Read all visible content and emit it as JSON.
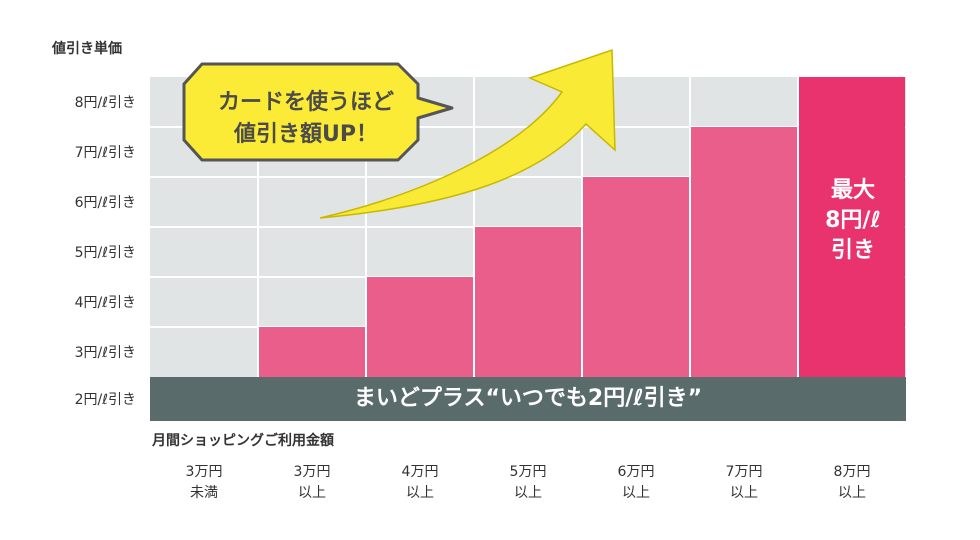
{
  "colors": {
    "grid_background": "#e0e4e5",
    "grid_lines": "#ffffff",
    "bar": "#e95e8a",
    "bar_max": "#e8336e",
    "base_banner": "#5a6b6c",
    "arrow": "#f9ea36",
    "bubble": "#fbeb36"
  },
  "chart_data": {
    "type": "bar",
    "ylabel": "値引き単価",
    "xlabel": "月間ショッピングご利用金額",
    "y_ticks": [
      "2円/ℓ引き",
      "3円/ℓ引き",
      "4円/ℓ引き",
      "5円/ℓ引き",
      "6円/ℓ引き",
      "7円/ℓ引き",
      "8円/ℓ引き"
    ],
    "ylim": [
      2,
      8
    ],
    "categories": [
      [
        "3万円",
        "未満"
      ],
      [
        "3万円",
        "以上"
      ],
      [
        "4万円",
        "以上"
      ],
      [
        "5万円",
        "以上"
      ],
      [
        "6万円",
        "以上"
      ],
      [
        "7万円",
        "以上"
      ],
      [
        "8万円",
        "以上"
      ]
    ],
    "values": [
      2,
      3,
      4,
      5,
      6,
      7,
      8
    ],
    "grid": true,
    "base_banner": "まいどプラス“いつでも2円/ℓ引き”",
    "max_label": [
      "最大",
      "8円/ℓ",
      "引き"
    ],
    "callout": [
      "カードを使うほど",
      "値引き額UP！"
    ]
  }
}
